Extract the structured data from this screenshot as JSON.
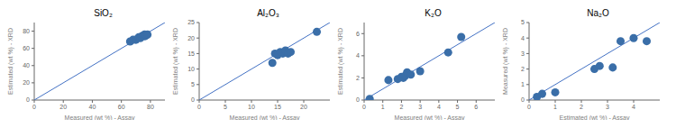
{
  "chart_data": [
    {
      "type": "scatter",
      "title": "SiO₂",
      "x_label": "Measured (wt %) - Assay",
      "y_label": "Estimated (wt %) - XRD",
      "xlim": [
        0,
        90
      ],
      "ylim": [
        0,
        90
      ],
      "xticks": [
        0,
        20,
        40,
        60,
        80
      ],
      "yticks": [
        0,
        20,
        40,
        60,
        80
      ],
      "series": [
        {
          "type": "line",
          "color": "#4472c4",
          "x": [
            0,
            90
          ],
          "values": [
            0,
            90
          ]
        },
        {
          "type": "scatter",
          "color": "#3a6ea8",
          "x": [
            66,
            68,
            70,
            72,
            73,
            74,
            75,
            76,
            76,
            77,
            78
          ],
          "values": [
            68,
            70,
            70,
            73,
            72,
            74,
            75,
            74,
            76,
            75,
            76
          ]
        }
      ]
    },
    {
      "type": "scatter",
      "title": "Al₂O₃",
      "x_label": "Measured (wt %) - Assay",
      "y_label": "Estimated (wt %) - XRD",
      "xlim": [
        0,
        25
      ],
      "ylim": [
        0,
        25
      ],
      "xticks": [
        0,
        5,
        10,
        15,
        20
      ],
      "yticks": [
        0,
        5,
        10,
        15,
        20,
        25
      ],
      "series": [
        {
          "type": "line",
          "color": "#4472c4",
          "x": [
            0,
            25
          ],
          "values": [
            0,
            25
          ]
        },
        {
          "type": "scatter",
          "color": "#3a6ea8",
          "x": [
            14.0,
            14.5,
            15.0,
            15.5,
            16.0,
            16.5,
            17.0,
            17.5,
            22.5
          ],
          "values": [
            12.0,
            15.0,
            14.5,
            15.5,
            15.0,
            16.0,
            15.0,
            15.5,
            22.0
          ]
        }
      ]
    },
    {
      "type": "scatter",
      "title": "K₂O",
      "x_label": "Measured (wt %) - Assay",
      "y_label": "Estimated (wt %) - XRD",
      "xlim": [
        0,
        7
      ],
      "ylim": [
        0,
        7
      ],
      "xticks": [
        0,
        1,
        2,
        3,
        4,
        5,
        6
      ],
      "yticks": [
        0,
        2,
        4,
        6
      ],
      "series": [
        {
          "type": "line",
          "color": "#4472c4",
          "x": [
            0,
            7
          ],
          "values": [
            0,
            7
          ]
        },
        {
          "type": "scatter",
          "color": "#3a6ea8",
          "x": [
            0.3,
            1.3,
            1.8,
            2.0,
            2.1,
            2.2,
            2.3,
            2.5,
            3.0,
            4.5,
            5.2
          ],
          "values": [
            0.1,
            1.8,
            1.9,
            2.1,
            2.0,
            2.2,
            2.5,
            2.3,
            2.6,
            4.3,
            5.7
          ]
        }
      ]
    },
    {
      "type": "scatter",
      "title": "Na₂O",
      "x_label": "Estimated (wt %) - Assay",
      "y_label": "Measured (wt %) - XRD",
      "xlim": [
        0,
        5
      ],
      "ylim": [
        0,
        5
      ],
      "xticks": [
        0,
        1,
        2,
        3,
        4
      ],
      "yticks": [
        0,
        1,
        2,
        3,
        4,
        5
      ],
      "series": [
        {
          "type": "line",
          "color": "#4472c4",
          "x": [
            0,
            5
          ],
          "values": [
            0,
            5
          ]
        },
        {
          "type": "scatter",
          "color": "#3a6ea8",
          "x": [
            0.3,
            0.5,
            1.0,
            2.5,
            2.7,
            3.2,
            3.5,
            4.0,
            4.5
          ],
          "values": [
            0.2,
            0.4,
            0.5,
            2.0,
            2.2,
            2.1,
            3.8,
            4.0,
            3.8
          ]
        }
      ]
    }
  ]
}
